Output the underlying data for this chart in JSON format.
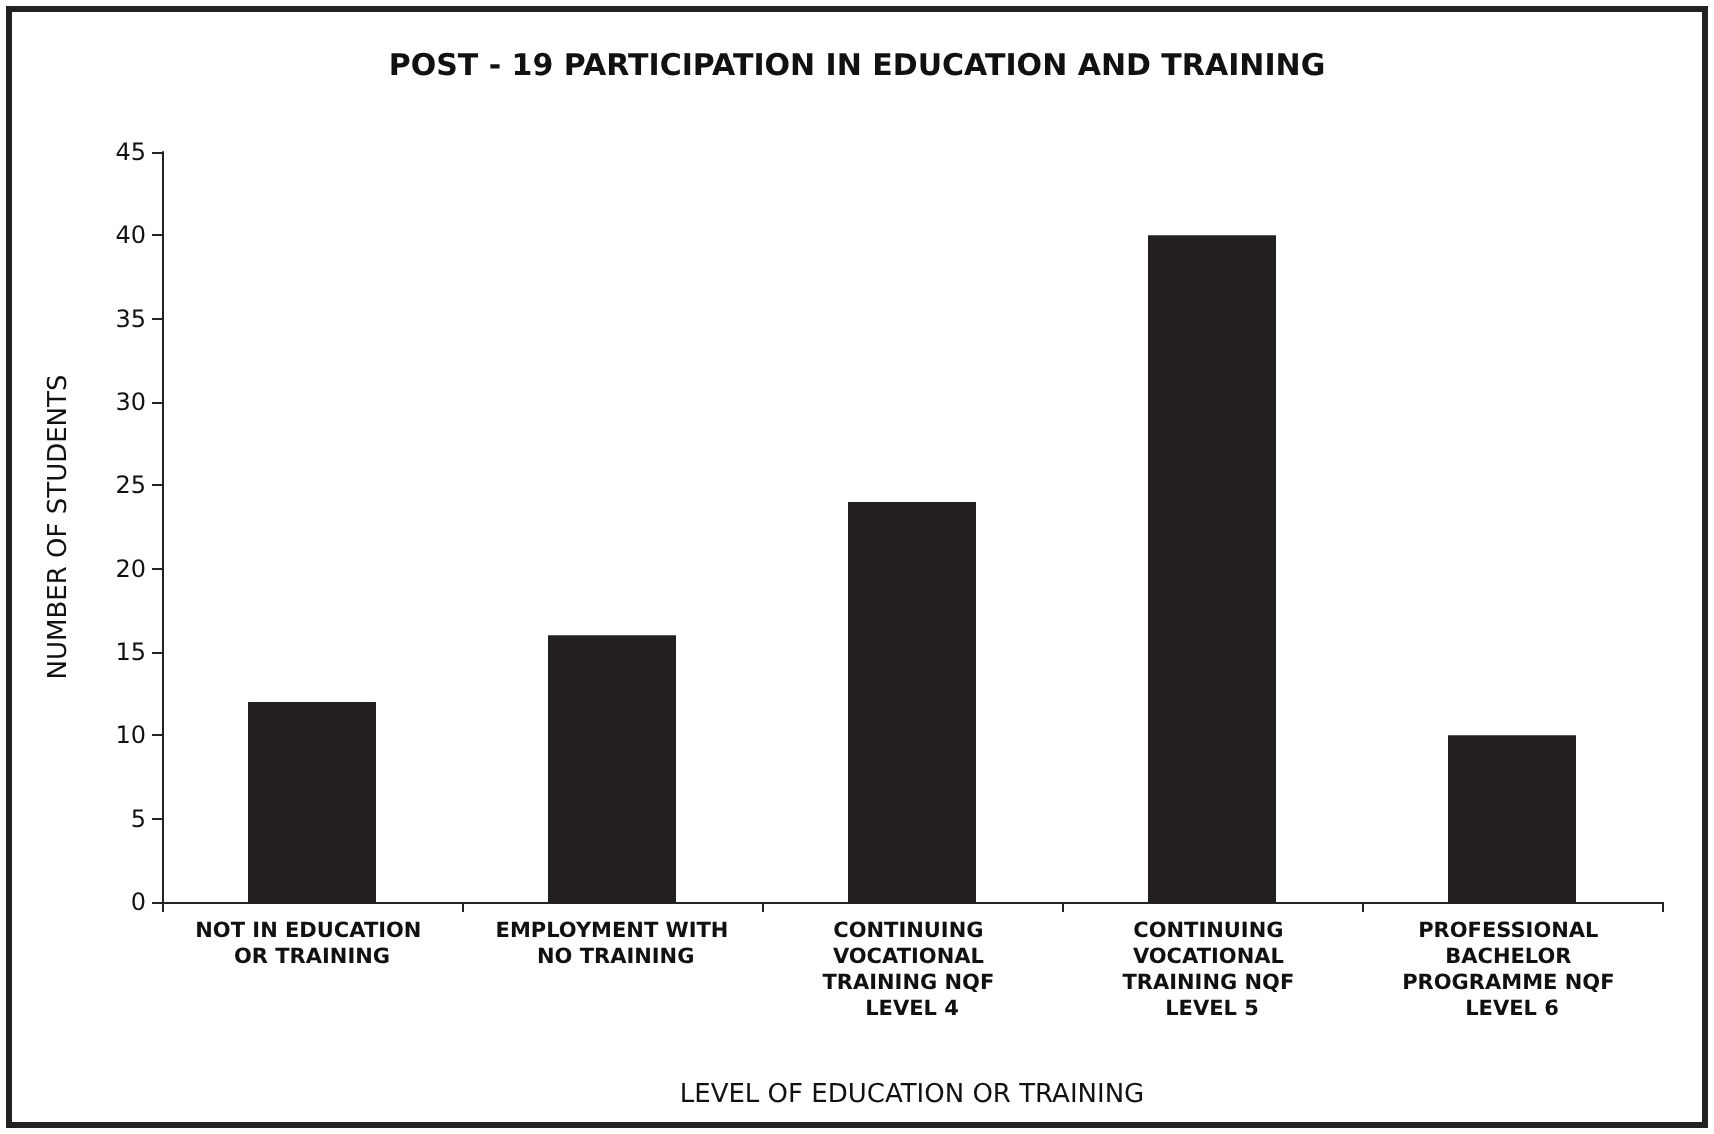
{
  "chart_data": {
    "type": "bar",
    "title": "POST - 19 PARTICIPATION IN EDUCATION AND TRAINING",
    "xlabel": "LEVEL OF EDUCATION OR TRAINING",
    "ylabel": "NUMBER OF STUDENTS",
    "categories": [
      "NOT IN EDUCATION OR TRAINING",
      "EMPLOYMENT WITH NO TRAINING",
      "CONTINUING VOCATIONAL TRAINING NQF LEVEL 4",
      "CONTINUING VOCATIONAL TRAINING NQF LEVEL 5",
      "PROFESSIONAL BACHELOR PROGRAMME NQF LEVEL 6"
    ],
    "values": [
      12,
      16,
      24,
      40,
      10
    ],
    "color": "#231f20",
    "ylim": [
      0,
      45
    ],
    "yticks": [
      0,
      5,
      10,
      15,
      20,
      25,
      30,
      35,
      40,
      45
    ]
  }
}
